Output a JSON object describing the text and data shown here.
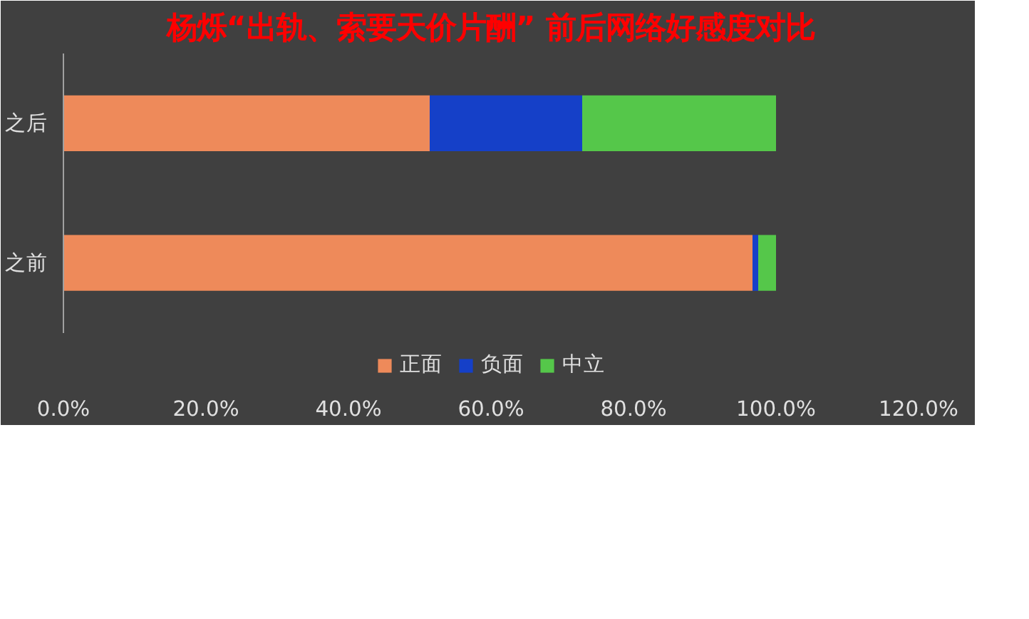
{
  "chart_data": {
    "type": "bar",
    "orientation": "horizontal",
    "stacked": true,
    "title": "杨烁“出轨、索要天价片酬” 前后网络好感度对比",
    "categories": [
      "之后",
      "之前"
    ],
    "series": [
      {
        "name": "正面",
        "color": "#ee8a5a",
        "values": [
          51.4,
          96.7
        ]
      },
      {
        "name": "负面",
        "color": "#1540c8",
        "values": [
          21.4,
          0.8
        ]
      },
      {
        "name": "中立",
        "color": "#55c74a",
        "values": [
          27.2,
          2.5
        ]
      }
    ],
    "xlim": [
      0,
      120
    ],
    "xticks": [
      {
        "value": 0,
        "label": "0.0%"
      },
      {
        "value": 20,
        "label": "20.0%"
      },
      {
        "value": 40,
        "label": "40.0%"
      },
      {
        "value": 60,
        "label": "60.0%"
      },
      {
        "value": 80,
        "label": "80.0%"
      },
      {
        "value": 100,
        "label": "100.0%"
      },
      {
        "value": 120,
        "label": "120.0%"
      }
    ],
    "grid": false,
    "legend": "bottom"
  }
}
